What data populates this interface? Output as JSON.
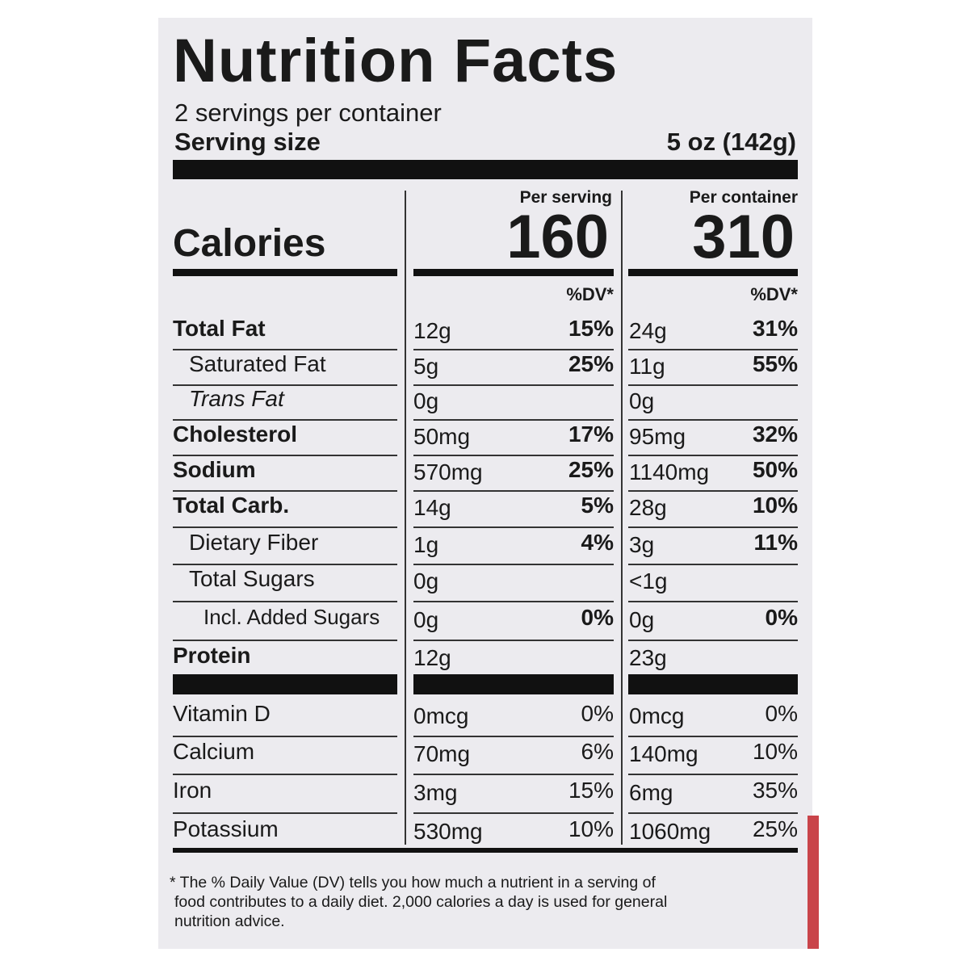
{
  "label": {
    "title": "Nutrition Facts",
    "servings": "2 servings per container",
    "serving_size_label": "Serving size",
    "serving_size_value": "5 oz (142g)",
    "calories": {
      "label": "Calories",
      "per_serving_label": "Per serving",
      "per_serving": "160",
      "per_container_label": "Per container",
      "per_container": "310"
    },
    "dv_header": "%DV*",
    "dv_header_container": "%DV*",
    "rows": [
      {
        "name": "Total Fat",
        "amount": "12g",
        "dv": "15%",
        "container_amount": "24g",
        "container_dv": "31%"
      },
      {
        "name": "Saturated Fat",
        "amount": "5g",
        "dv": "25%",
        "container_amount": "11g",
        "container_dv": "55%"
      },
      {
        "name": "Trans Fat",
        "amount": "0g",
        "container_amount": "0g"
      },
      {
        "name": "Cholesterol",
        "amount": "50mg",
        "dv": "17%",
        "container_amount": "95mg",
        "container_dv": "32%"
      },
      {
        "name": "Sodium",
        "amount": "570mg",
        "dv": "25%",
        "container_amount": "1140mg",
        "container_dv": "50%"
      },
      {
        "name": "Total Carb.",
        "amount": "14g",
        "dv": "5%",
        "container_amount": "28g",
        "container_dv": "10%"
      },
      {
        "name": "Dietary Fiber",
        "amount": "1g",
        "dv": "4%",
        "container_amount": "3g",
        "container_dv": "11%"
      },
      {
        "name": "Total Sugars",
        "amount": "0g",
        "container_amount": "<1g"
      },
      {
        "name": "Incl. Added Sugars",
        "amount": "0g",
        "dv": "0%",
        "container_amount": "0g",
        "container_dv": "0%"
      },
      {
        "name": "Protein",
        "amount": "12g",
        "container_amount": "23g"
      },
      {
        "name": "Vitamin D",
        "amount": "0mcg",
        "dv": "0%",
        "container_amount": "0mcg",
        "container_dv": "0%"
      },
      {
        "name": "Calcium",
        "amount": "70mg",
        "dv": "6%",
        "container_amount": "140mg",
        "container_dv": "10%"
      },
      {
        "name": "Iron",
        "amount": "3mg",
        "dv": "15%",
        "container_amount": "6mg",
        "container_dv": "35%"
      },
      {
        "name": "Potassium",
        "amount": "530mg",
        "dv": "10%",
        "container_amount": "1060mg",
        "container_dv": "25%"
      }
    ],
    "footnote": [
      "* The % Daily Value (DV) tells you how much a nutrient in a serving of",
      "food contributes to a daily diet. 2,000 calories a day is used for general",
      "nutrition advice."
    ]
  }
}
